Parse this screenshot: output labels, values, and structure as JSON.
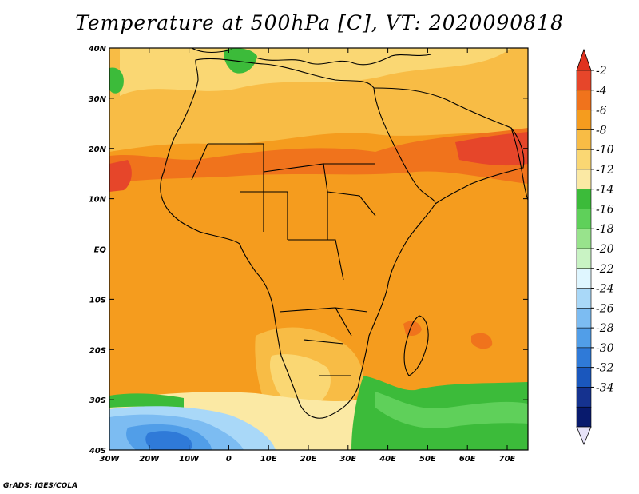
{
  "title": "Temperature at 500hPa [C], VT: 2020090818",
  "credit": "GrADS: IGES/COLA",
  "lat_labels": [
    "40N",
    "30N",
    "20N",
    "10N",
    "EQ",
    "10S",
    "20S",
    "30S",
    "40S"
  ],
  "lon_labels": [
    "30W",
    "20W",
    "10W",
    "0",
    "10E",
    "20E",
    "30E",
    "40E",
    "50E",
    "60E",
    "70E"
  ],
  "colorbar": {
    "labels": [
      "-2",
      "-4",
      "-6",
      "-8",
      "-10",
      "-12",
      "-14",
      "-16",
      "-18",
      "-20",
      "-22",
      "-24",
      "-26",
      "-28",
      "-30",
      "-32",
      "-34"
    ],
    "colors": [
      "#e6462a",
      "#f0731c",
      "#f59c1e",
      "#f8bc45",
      "#fad773",
      "#fbe9a4",
      "#3cbb3a",
      "#5fd05a",
      "#98e38c",
      "#c9f3c4",
      "#dff6ff",
      "#a9d8f8",
      "#7cbcf2",
      "#519ee8",
      "#2f7ad8",
      "#1a57bd",
      "#15328f",
      "#081a6d"
    ],
    "top_color": "#e0321f",
    "bottom_color": "#e6e2f8"
  },
  "map_colors": {
    "ocean_warm": "#f59c1e",
    "land_warm": "#f8bc45",
    "hot": "#e6462a",
    "mild": "#fad773",
    "cool": "#fbe9a4",
    "green": "#3cbb3a",
    "lightgreen": "#98e38c",
    "blue_light": "#a9d8f8",
    "blue_mid": "#519ee8",
    "blue_dark": "#1a57bd"
  }
}
